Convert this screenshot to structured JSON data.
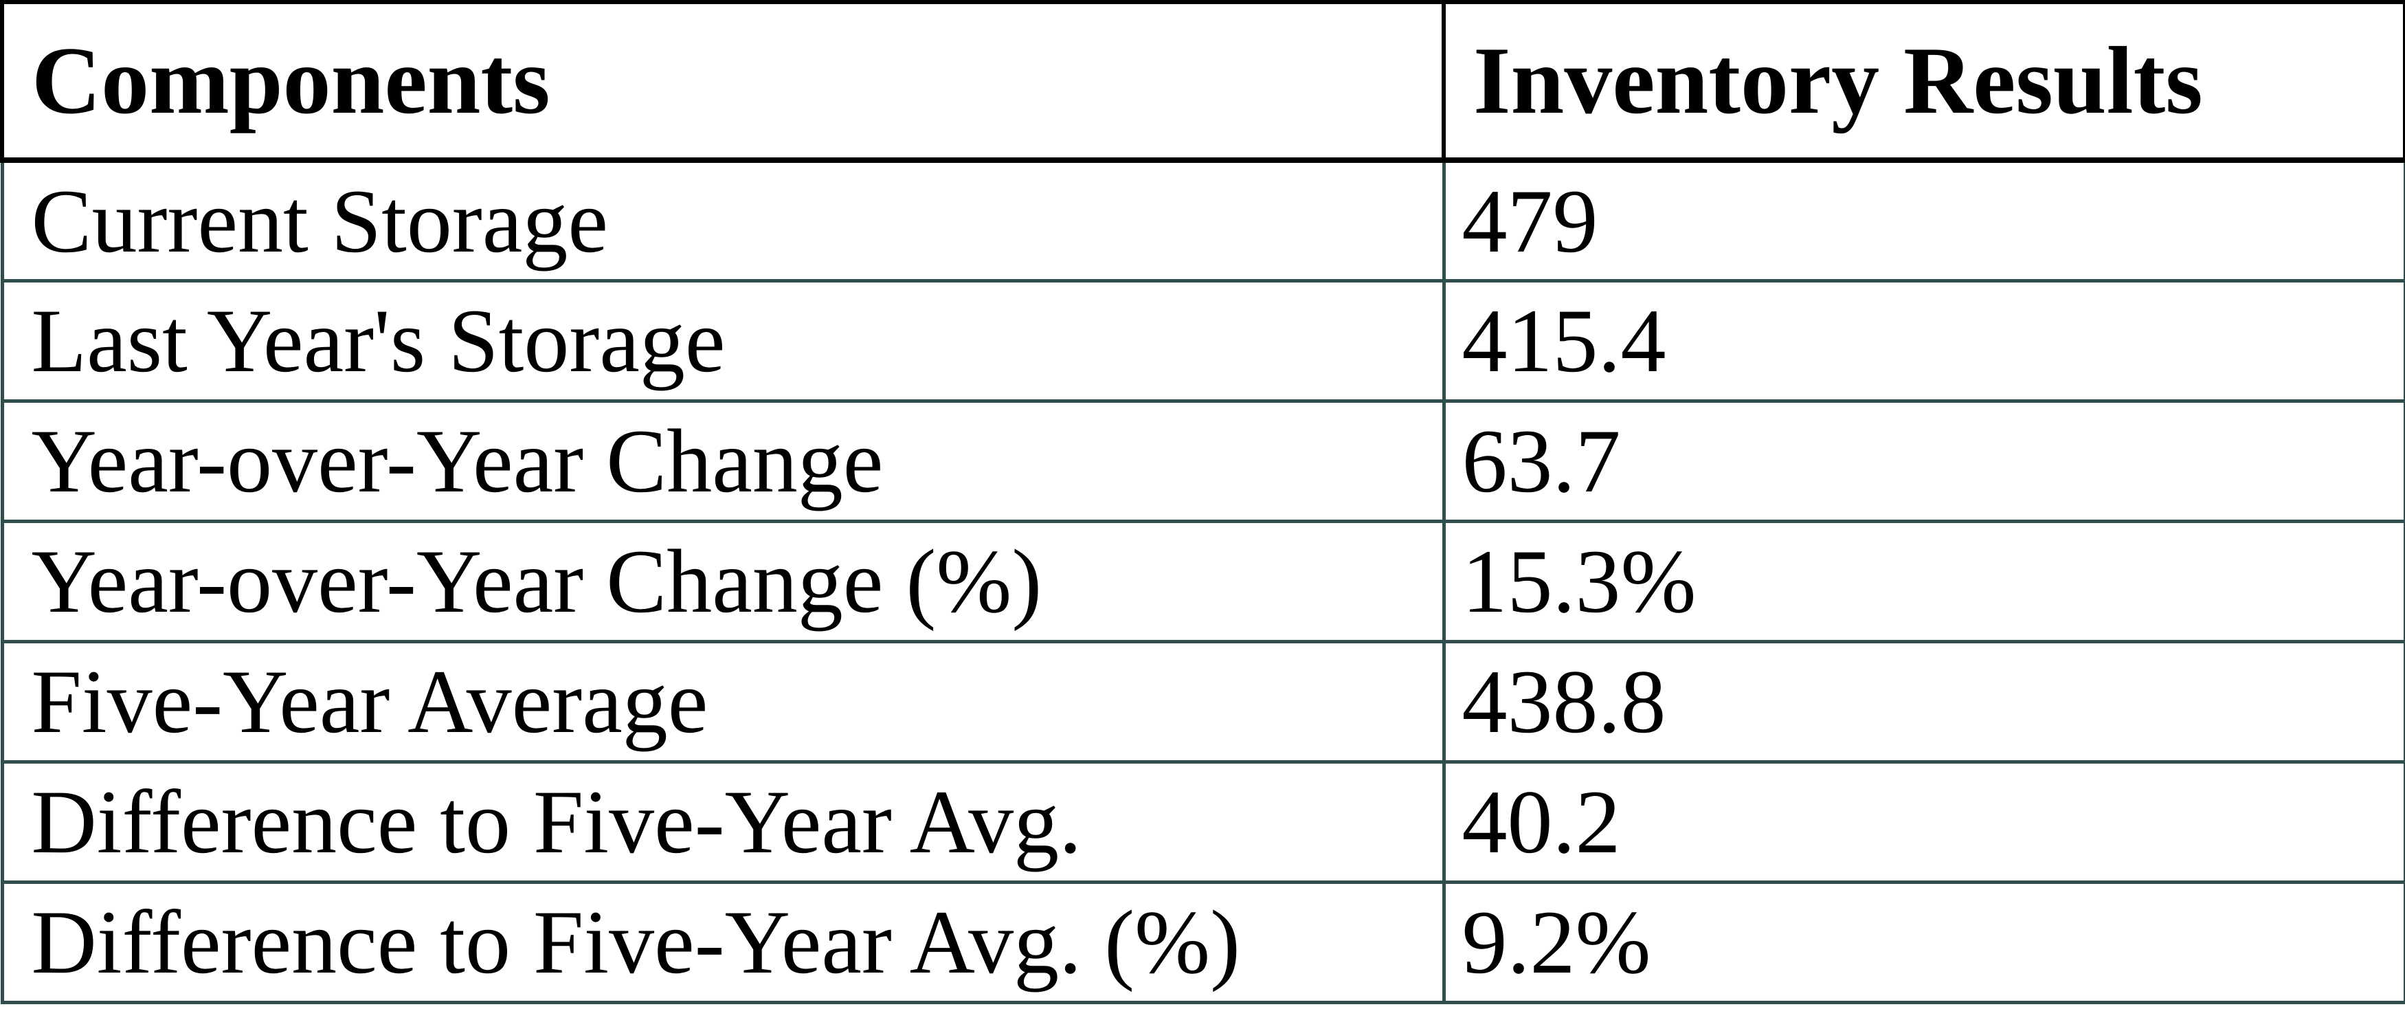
{
  "chart_data": {
    "type": "table",
    "title": "",
    "columns": [
      "Components",
      "Inventory Results"
    ],
    "rows": [
      [
        "Current Storage",
        "479"
      ],
      [
        "Last Year's Storage",
        "415.4"
      ],
      [
        "Year-over-Year Change",
        "63.7"
      ],
      [
        "Year-over-Year Change (%)",
        "15.3%"
      ],
      [
        "Five-Year Average",
        "438.8"
      ],
      [
        "Difference to Five-Year Avg.",
        "40.2"
      ],
      [
        "Difference to Five-Year Avg. (%)",
        "9.2%"
      ]
    ],
    "layout": {
      "header_border_color": "#000000",
      "body_border_color": "#2F4F4F",
      "text_color": "#000000",
      "background_color": "#FFFFFF",
      "header_bold": true,
      "grid": "full"
    }
  }
}
